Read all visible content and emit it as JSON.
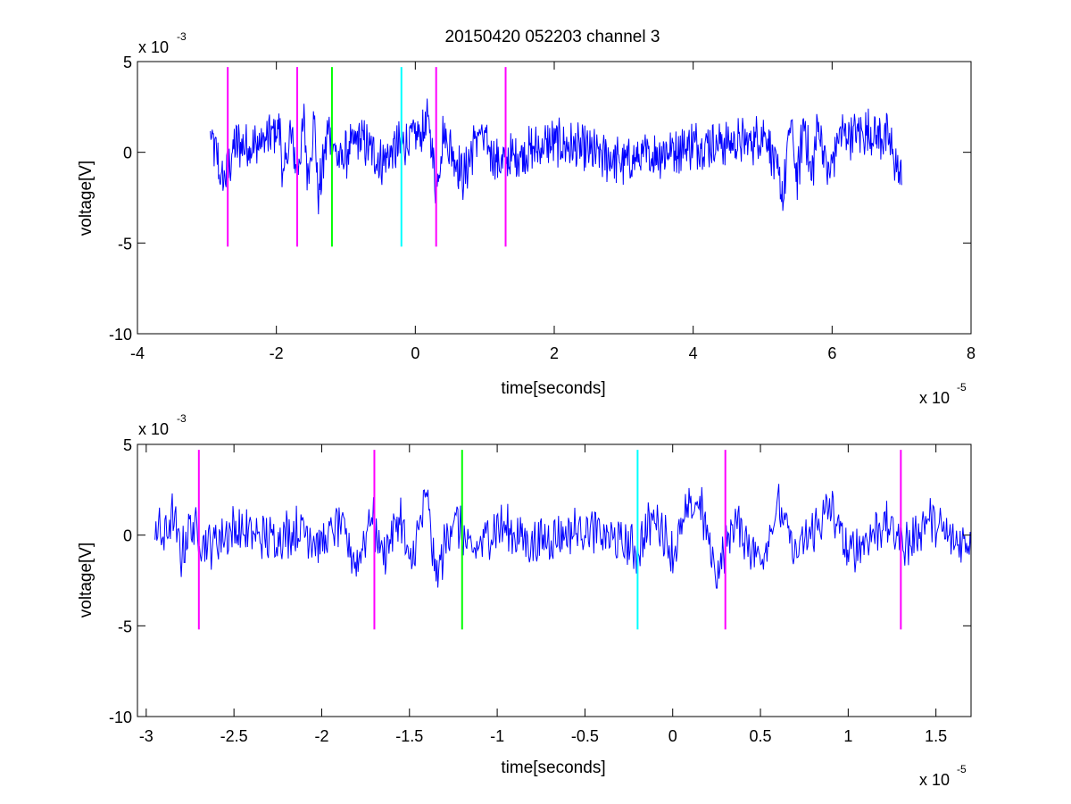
{
  "chart_data": [
    {
      "type": "line",
      "title": "20150420 052203 channel 3",
      "xlabel": "time[seconds]",
      "ylabel": "voltage[V]",
      "xlim": [
        -4e-05,
        8e-05
      ],
      "ylim": [
        -0.01,
        0.005
      ],
      "x_ticks": [
        -4e-05,
        -2e-05,
        0,
        2e-05,
        4e-05,
        6e-05,
        8e-05
      ],
      "x_tick_labels": [
        "-4",
        "-2",
        "0",
        "2",
        "4",
        "6",
        "8"
      ],
      "y_ticks": [
        -0.01,
        -0.005,
        0,
        0.005
      ],
      "y_tick_labels": [
        "-10",
        "-5",
        "0",
        "5"
      ],
      "x_multiplier": "x 10",
      "x_exponent": "-5",
      "y_multiplier": "x 10",
      "y_exponent": "-3",
      "grid": false,
      "series": [
        {
          "color": "#0000ff",
          "x_start": -2.95e-05,
          "x_end": 7e-05,
          "keypoints": [
            [
              -2.95e-05,
              0.0015
            ],
            [
              -2.85e-05,
              -0.0005
            ],
            [
              -2.8e-05,
              -0.003
            ],
            [
              -2.7e-05,
              -0.002
            ],
            [
              -2.6e-05,
              0.0008
            ],
            [
              -2.3e-05,
              0.0006
            ],
            [
              -2.1e-05,
              0.0015
            ],
            [
              -1.95e-05,
              0.0025
            ],
            [
              -1.9e-05,
              -0.003
            ],
            [
              -1.8e-05,
              0.002
            ],
            [
              -1.7e-05,
              -0.002
            ],
            [
              -1.6e-05,
              0.003
            ],
            [
              -1.55e-05,
              -0.0025
            ],
            [
              -1.45e-05,
              0.0035
            ],
            [
              -1.4e-05,
              -0.0047
            ],
            [
              -1.25e-05,
              0.0025
            ],
            [
              -1.1e-05,
              -0.001
            ],
            [
              -8e-06,
              0.0015
            ],
            [
              -5e-06,
              -0.001
            ],
            [
              -2e-06,
              0.0008
            ],
            [
              1e-06,
              0.002
            ],
            [
              2e-06,
              0.0032
            ],
            [
              3e-06,
              -0.004
            ],
            [
              4e-06,
              0.002
            ],
            [
              7e-06,
              -0.0025
            ],
            [
              9e-06,
              0.002
            ],
            [
              1.2e-05,
              -0.001
            ],
            [
              2e-05,
              0.001
            ],
            [
              3e-05,
              -0.001
            ],
            [
              4e-05,
              0.0008
            ],
            [
              4.8e-05,
              0.001
            ],
            [
              5.05e-05,
              0.002
            ],
            [
              5.2e-05,
              -0.002
            ],
            [
              5.3e-05,
              -0.0045
            ],
            [
              5.4e-05,
              0.0032
            ],
            [
              5.5e-05,
              -0.003
            ],
            [
              5.6e-05,
              0.0034
            ],
            [
              5.7e-05,
              -0.0028
            ],
            [
              5.8e-05,
              0.003
            ],
            [
              5.95e-05,
              -0.0025
            ],
            [
              6.1e-05,
              0.0018
            ],
            [
              6.5e-05,
              0.002
            ],
            [
              6.8e-05,
              0.0015
            ],
            [
              7e-05,
              -0.003
            ]
          ]
        }
      ],
      "markers": [
        {
          "x": -2.7e-05,
          "y_range": [
            -0.0052,
            0.0047
          ],
          "color": "#ff00ff"
        },
        {
          "x": -1.7e-05,
          "y_range": [
            -0.0052,
            0.0047
          ],
          "color": "#ff00ff"
        },
        {
          "x": -1.2e-05,
          "y_range": [
            -0.0052,
            0.0047
          ],
          "color": "#00ff00"
        },
        {
          "x": -2e-06,
          "y_range": [
            -0.0052,
            0.0047
          ],
          "color": "#00ffff"
        },
        {
          "x": 3e-06,
          "y_range": [
            -0.0052,
            0.0047
          ],
          "color": "#ff00ff"
        },
        {
          "x": 1.3e-05,
          "y_range": [
            -0.0052,
            0.0047
          ],
          "color": "#ff00ff"
        }
      ]
    },
    {
      "type": "line",
      "title": "",
      "xlabel": "time[seconds]",
      "ylabel": "voltage[V]",
      "xlim": [
        -3.05e-05,
        1.7e-05
      ],
      "ylim": [
        -0.01,
        0.005
      ],
      "x_ticks": [
        -3e-05,
        -2.5e-05,
        -2e-05,
        -1.5e-05,
        -1e-05,
        -5e-06,
        0,
        5e-06,
        1e-05,
        1.5e-05
      ],
      "x_tick_labels": [
        "-3",
        "-2.5",
        "-2",
        "-1.5",
        "-1",
        "-0.5",
        "0",
        "0.5",
        "1",
        "1.5"
      ],
      "y_ticks": [
        -0.01,
        -0.005,
        0,
        0.005
      ],
      "y_tick_labels": [
        "-10",
        "-5",
        "0",
        "5"
      ],
      "x_multiplier": "x 10",
      "x_exponent": "-5",
      "y_multiplier": "x 10",
      "y_exponent": "-3",
      "grid": false,
      "series": [
        {
          "color": "#0000ff",
          "x_start": -2.95e-05,
          "x_end": 1.7e-05,
          "keypoints": [
            [
              -2.95e-05,
              0.0012
            ],
            [
              -2.9e-05,
              -0.0005
            ],
            [
              -2.85e-05,
              0.002
            ],
            [
              -2.8e-05,
              -0.002
            ],
            [
              -2.75e-05,
              0.001
            ],
            [
              -2.65e-05,
              -0.001
            ],
            [
              -2.5e-05,
              0.0006
            ],
            [
              -2.3e-05,
              -0.0004
            ],
            [
              -2.1e-05,
              0.0007
            ],
            [
              -2e-05,
              -0.001
            ],
            [
              -1.9e-05,
              0.0012
            ],
            [
              -1.8e-05,
              -0.003
            ],
            [
              -1.72e-05,
              0.002
            ],
            [
              -1.65e-05,
              -0.002
            ],
            [
              -1.55e-05,
              0.002
            ],
            [
              -1.5e-05,
              -0.0035
            ],
            [
              -1.4e-05,
              0.004
            ],
            [
              -1.35e-05,
              -0.0045
            ],
            [
              -1.25e-05,
              0.002
            ],
            [
              -1.15e-05,
              -0.002
            ],
            [
              -1e-05,
              0.001
            ],
            [
              -8e-06,
              -0.0008
            ],
            [
              -5e-06,
              0.0007
            ],
            [
              -2e-06,
              -0.0015
            ],
            [
              -1e-06,
              0.0022
            ],
            [
              0.0,
              -0.002
            ],
            [
              8e-07,
              0.002
            ],
            [
              1.5e-06,
              0.0035
            ],
            [
              2.5e-06,
              -0.004
            ],
            [
              3.5e-06,
              0.0015
            ],
            [
              5e-06,
              -0.0025
            ],
            [
              6e-06,
              0.003
            ],
            [
              7e-06,
              -0.002
            ],
            [
              9e-06,
              0.0028
            ],
            [
              1e-05,
              -0.002
            ],
            [
              1.2e-05,
              0.0012
            ],
            [
              1.35e-05,
              -0.001
            ],
            [
              1.45e-05,
              0.0018
            ],
            [
              1.6e-05,
              -0.0008
            ],
            [
              1.7e-05,
              -0.0005
            ]
          ]
        }
      ],
      "markers": [
        {
          "x": -2.7e-05,
          "y_range": [
            -0.0052,
            0.0047
          ],
          "color": "#ff00ff"
        },
        {
          "x": -1.7e-05,
          "y_range": [
            -0.0052,
            0.0047
          ],
          "color": "#ff00ff"
        },
        {
          "x": -1.2e-05,
          "y_range": [
            -0.0052,
            0.0047
          ],
          "color": "#00ff00"
        },
        {
          "x": -2e-06,
          "y_range": [
            -0.0052,
            0.0047
          ],
          "color": "#00ffff"
        },
        {
          "x": 3e-06,
          "y_range": [
            -0.0052,
            0.0047
          ],
          "color": "#ff00ff"
        },
        {
          "x": 1.3e-05,
          "y_range": [
            -0.0052,
            0.0047
          ],
          "color": "#ff00ff"
        }
      ]
    }
  ]
}
